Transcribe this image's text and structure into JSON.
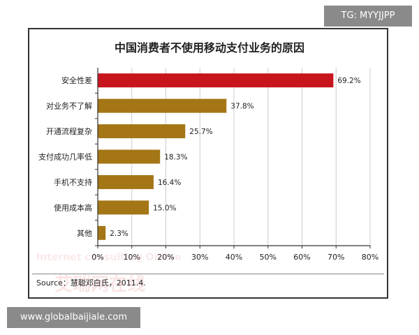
{
  "watermark_tag": "TG: MYYJJPP",
  "footer_tag": "www.globalbaijiale.com",
  "source_text": "Source：慧聪邓白氏，2011.4.",
  "background_watermark": {
    "english": "Internet consulting Online",
    "chinese": "艾瑞网在线"
  },
  "colors": {
    "highlight_bar": "#c8141c",
    "bar": "#a47616",
    "axis": "#333333",
    "grid": "#cccccc"
  },
  "chart_data": {
    "type": "bar",
    "orientation": "horizontal",
    "title": "中国消费者不使用移动支付业务的原因",
    "categories": [
      "安全性差",
      "对业务不了解",
      "开通流程复杂",
      "支付成功几率低",
      "手机不支持",
      "使用成本高",
      "其他"
    ],
    "values": [
      69.2,
      37.8,
      25.7,
      18.3,
      16.4,
      15.0,
      2.3
    ],
    "value_labels": [
      "69.2%",
      "37.8%",
      "25.7%",
      "18.3%",
      "16.4%",
      "15.0%",
      "2.3%"
    ],
    "xlim": [
      0,
      80
    ],
    "xticks": [
      0,
      10,
      20,
      30,
      40,
      50,
      60,
      70,
      80
    ],
    "xtick_labels": [
      "0%",
      "10%",
      "20%",
      "30%",
      "40%",
      "50%",
      "60%",
      "70%",
      "80%"
    ],
    "highlighted_category": "安全性差",
    "grid": true,
    "legend": false
  }
}
